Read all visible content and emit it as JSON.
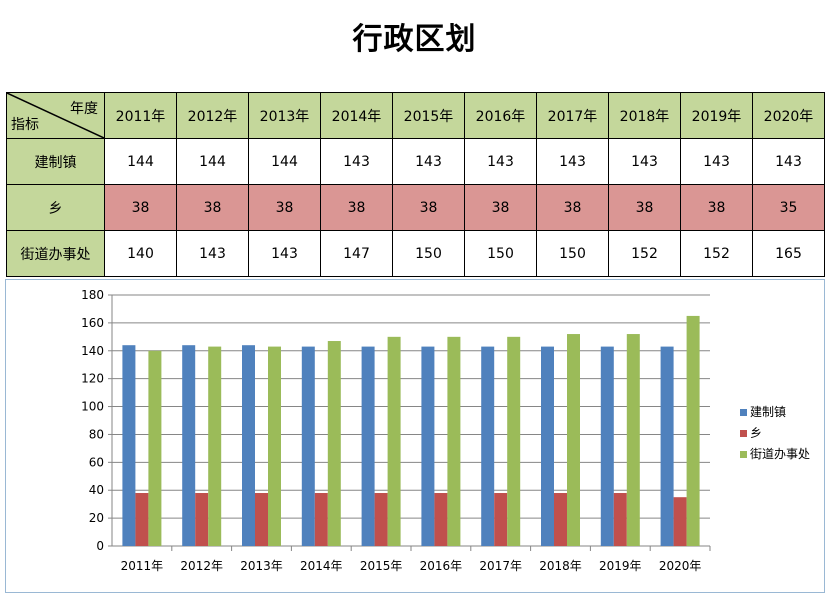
{
  "title": "行政区划",
  "table": {
    "corner_top": "年度",
    "corner_bottom": "指标",
    "years": [
      "2011年",
      "2012年",
      "2013年",
      "2014年",
      "2015年",
      "2016年",
      "2017年",
      "2018年",
      "2019年",
      "2020年"
    ],
    "rows": [
      {
        "label": "建制镇",
        "values": [
          144,
          144,
          144,
          143,
          143,
          143,
          143,
          143,
          143,
          143
        ]
      },
      {
        "label": "乡",
        "values": [
          38,
          38,
          38,
          38,
          38,
          38,
          38,
          38,
          38,
          35
        ]
      },
      {
        "label": "街道办事处",
        "values": [
          140,
          143,
          143,
          147,
          150,
          150,
          150,
          152,
          152,
          165
        ]
      }
    ]
  },
  "chart_data": {
    "type": "bar",
    "categories": [
      "2011年",
      "2012年",
      "2013年",
      "2014年",
      "2015年",
      "2016年",
      "2017年",
      "2018年",
      "2019年",
      "2020年"
    ],
    "series": [
      {
        "name": "建制镇",
        "color": "#4f81bd",
        "values": [
          144,
          144,
          144,
          143,
          143,
          143,
          143,
          143,
          143,
          143
        ]
      },
      {
        "name": "乡",
        "color": "#c0504d",
        "values": [
          38,
          38,
          38,
          38,
          38,
          38,
          38,
          38,
          38,
          35
        ]
      },
      {
        "name": "街道办事处",
        "color": "#9bbb59",
        "values": [
          140,
          143,
          143,
          147,
          150,
          150,
          150,
          152,
          152,
          165
        ]
      }
    ],
    "yticks": [
      0,
      20,
      40,
      60,
      80,
      100,
      120,
      140,
      160,
      180
    ],
    "ylim": [
      0,
      180
    ],
    "grid": true,
    "legend_position": "right"
  }
}
